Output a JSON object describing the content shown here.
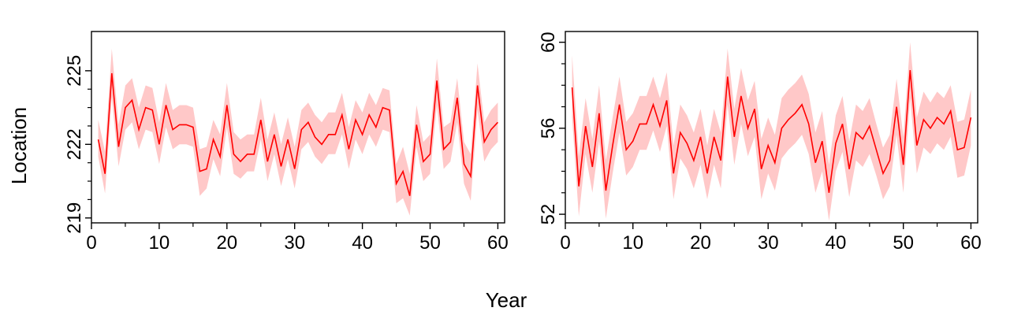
{
  "figure": {
    "xlabel": "Year",
    "ylabel": "Location",
    "colors": {
      "line": "#ff0000",
      "band": "#ffc8c8",
      "axis": "#000000"
    }
  },
  "chart_data": [
    {
      "type": "line",
      "x": [
        1,
        2,
        3,
        4,
        5,
        6,
        7,
        8,
        9,
        10,
        11,
        12,
        13,
        14,
        15,
        16,
        17,
        18,
        19,
        20,
        21,
        22,
        23,
        24,
        25,
        26,
        27,
        28,
        29,
        30,
        31,
        32,
        33,
        34,
        35,
        36,
        37,
        38,
        39,
        40,
        41,
        42,
        43,
        44,
        45,
        46,
        47,
        48,
        49,
        50,
        51,
        52,
        53,
        54,
        55,
        56,
        57,
        58,
        59,
        60
      ],
      "xlim": [
        0,
        61
      ],
      "ylim": [
        218.8,
        226.6
      ],
      "xticks": [
        0,
        10,
        20,
        30,
        40,
        50,
        60
      ],
      "yticks": [
        219,
        222,
        225
      ],
      "ytick_labels": [
        "219",
        "222",
        "225"
      ],
      "grid": false,
      "series": [
        {
          "values": [
            222.2,
            220.8,
            224.9,
            221.9,
            223.5,
            223.8,
            222.6,
            223.5,
            223.4,
            222.0,
            223.6,
            222.6,
            222.8,
            222.8,
            222.7,
            220.9,
            221.0,
            222.2,
            221.5,
            223.6,
            221.6,
            221.3,
            221.6,
            221.6,
            223.0,
            221.3,
            222.4,
            221.1,
            222.2,
            221.0,
            222.6,
            222.9,
            222.3,
            222.0,
            222.4,
            222.4,
            223.2,
            221.8,
            223.0,
            222.4,
            223.2,
            222.7,
            223.5,
            223.4,
            220.4,
            220.9,
            219.9,
            222.8,
            221.3,
            221.6,
            224.6,
            221.8,
            222.1,
            223.9,
            221.2,
            220.7,
            224.4,
            222.1,
            222.6,
            222.9
          ],
          "lower": [
            221.5,
            220.0,
            223.9,
            221.1,
            222.6,
            222.9,
            221.8,
            222.6,
            222.5,
            221.2,
            222.7,
            221.8,
            222.0,
            222.0,
            221.9,
            219.9,
            220.2,
            221.4,
            220.7,
            222.7,
            220.8,
            220.6,
            220.9,
            220.9,
            222.2,
            220.5,
            221.6,
            220.3,
            221.4,
            220.2,
            221.8,
            222.1,
            221.5,
            221.2,
            221.6,
            221.6,
            222.4,
            221.0,
            222.2,
            221.6,
            222.4,
            221.9,
            222.6,
            222.5,
            219.6,
            219.8,
            219.1,
            221.9,
            220.5,
            220.8,
            223.6,
            221.0,
            221.3,
            222.9,
            220.4,
            219.7,
            223.4,
            221.3,
            221.8,
            222.1
          ],
          "upper": [
            223.0,
            221.7,
            225.9,
            222.8,
            224.4,
            224.7,
            223.5,
            224.4,
            224.3,
            222.9,
            224.5,
            223.4,
            223.6,
            223.6,
            223.5,
            221.8,
            221.9,
            223.0,
            222.4,
            224.5,
            222.5,
            222.2,
            222.4,
            222.4,
            223.9,
            222.2,
            223.3,
            222.0,
            223.1,
            221.9,
            223.4,
            223.7,
            223.2,
            222.9,
            223.3,
            223.3,
            224.1,
            222.7,
            223.8,
            223.3,
            224.1,
            223.6,
            224.3,
            224.2,
            221.2,
            221.9,
            220.8,
            223.6,
            222.1,
            222.4,
            225.5,
            222.7,
            222.9,
            224.7,
            222.1,
            221.6,
            225.3,
            222.9,
            223.4,
            223.7
          ]
        }
      ]
    },
    {
      "type": "line",
      "x": [
        1,
        2,
        3,
        4,
        5,
        6,
        7,
        8,
        9,
        10,
        11,
        12,
        13,
        14,
        15,
        16,
        17,
        18,
        19,
        20,
        21,
        22,
        23,
        24,
        25,
        26,
        27,
        28,
        29,
        30,
        31,
        32,
        33,
        34,
        35,
        36,
        37,
        38,
        39,
        40,
        41,
        42,
        43,
        44,
        45,
        46,
        47,
        48,
        49,
        50,
        51,
        52,
        53,
        54,
        55,
        56,
        57,
        58,
        59,
        60
      ],
      "xlim": [
        0,
        61
      ],
      "ylim": [
        51.6,
        60.5
      ],
      "xticks": [
        0,
        10,
        20,
        30,
        40,
        50,
        60
      ],
      "yticks": [
        52,
        56,
        60
      ],
      "ytick_labels": [
        "52",
        "56",
        "60"
      ],
      "grid": false,
      "series": [
        {
          "values": [
            57.9,
            53.3,
            56.1,
            54.2,
            56.7,
            53.1,
            55.2,
            57.1,
            55.0,
            55.4,
            56.2,
            56.2,
            57.1,
            56.1,
            57.3,
            53.9,
            55.8,
            55.3,
            54.5,
            55.6,
            53.9,
            55.6,
            54.5,
            58.4,
            55.6,
            57.5,
            56.0,
            56.9,
            54.1,
            55.2,
            54.4,
            56.0,
            56.4,
            56.7,
            57.1,
            56.2,
            54.4,
            55.4,
            53.0,
            55.3,
            56.2,
            54.1,
            55.8,
            55.5,
            56.1,
            55.0,
            53.9,
            54.5,
            57.0,
            54.3,
            58.7,
            55.2,
            56.4,
            56.0,
            56.5,
            56.2,
            56.8,
            55.0,
            55.1,
            56.5
          ],
          "lower": [
            56.5,
            51.9,
            54.8,
            53.0,
            55.4,
            51.8,
            53.9,
            55.8,
            53.8,
            54.2,
            55.0,
            55.0,
            55.9,
            54.9,
            56.1,
            52.7,
            54.6,
            54.1,
            53.2,
            54.3,
            52.7,
            54.3,
            53.2,
            57.1,
            54.3,
            56.2,
            54.7,
            55.6,
            52.7,
            53.9,
            53.1,
            54.6,
            55.0,
            55.3,
            55.7,
            54.8,
            53.0,
            54.0,
            51.7,
            54.0,
            54.9,
            52.8,
            54.5,
            54.2,
            54.8,
            53.8,
            52.7,
            53.3,
            55.7,
            53.0,
            57.4,
            53.9,
            55.1,
            54.8,
            55.3,
            55.0,
            55.6,
            53.7,
            53.8,
            55.2
          ],
          "upper": [
            59.4,
            54.7,
            57.4,
            55.5,
            58.0,
            54.5,
            56.5,
            58.4,
            56.3,
            56.7,
            57.5,
            57.5,
            58.4,
            57.4,
            58.6,
            55.2,
            57.1,
            56.6,
            55.8,
            56.9,
            55.2,
            56.9,
            55.8,
            59.7,
            56.9,
            58.8,
            57.3,
            58.2,
            55.5,
            56.5,
            55.7,
            57.4,
            57.8,
            58.1,
            58.5,
            57.6,
            55.8,
            56.8,
            54.3,
            56.6,
            57.5,
            55.4,
            57.1,
            56.8,
            57.4,
            56.2,
            55.1,
            55.7,
            58.3,
            55.6,
            60.0,
            56.5,
            57.7,
            57.2,
            57.7,
            57.4,
            58.0,
            56.3,
            56.4,
            57.8
          ]
        }
      ]
    }
  ]
}
